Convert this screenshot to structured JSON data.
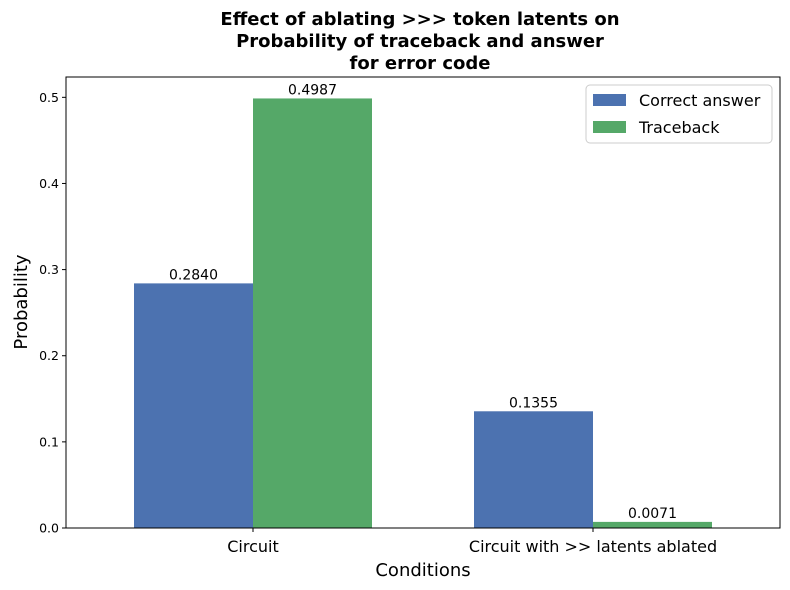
{
  "chart_data": {
    "type": "bar",
    "title_lines": [
      "Effect of ablating >>> token latents on",
      "Probability of traceback and answer",
      "for error code"
    ],
    "xlabel": "Conditions",
    "ylabel": "Probability",
    "categories": [
      "Circuit",
      "Circuit with >> latents ablated"
    ],
    "series": [
      {
        "name": "Correct answer",
        "color": "#4c72b0",
        "values": [
          0.284,
          0.1355
        ],
        "labels": [
          "0.2840",
          "0.1355"
        ]
      },
      {
        "name": "Traceback",
        "color": "#55a868",
        "values": [
          0.4987,
          0.0071
        ],
        "labels": [
          "0.4987",
          "0.0071"
        ]
      }
    ],
    "ylim": [
      0,
      0.5236
    ],
    "yticks": [
      0.0,
      0.1,
      0.2,
      0.3,
      0.4,
      0.5
    ],
    "ytick_labels": [
      "0.0",
      "0.1",
      "0.2",
      "0.3",
      "0.4",
      "0.5"
    ],
    "grid": false,
    "legend_position": "top-right"
  }
}
